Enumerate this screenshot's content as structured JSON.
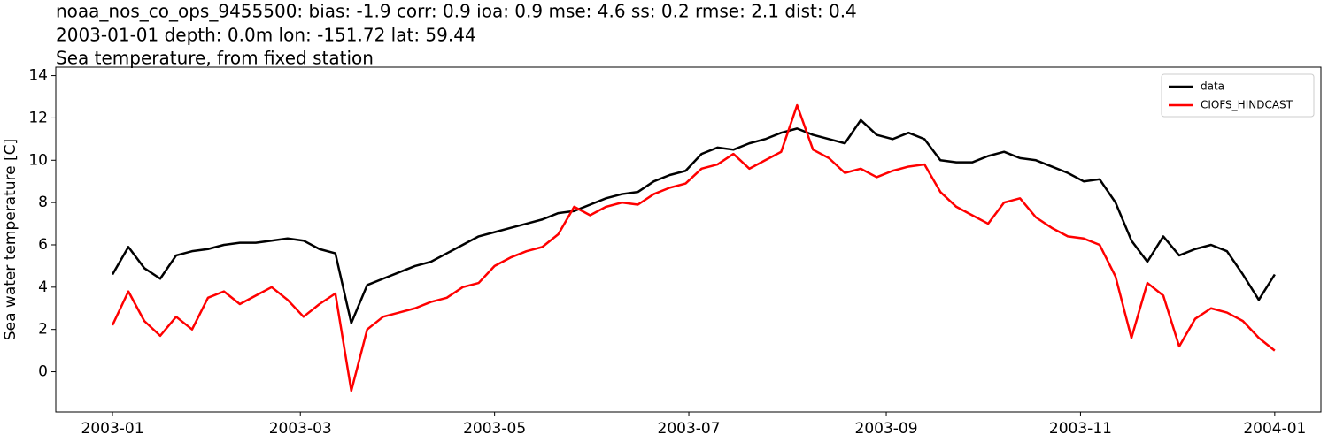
{
  "chart_data": {
    "type": "line",
    "title": [
      "noaa_nos_co_ops_9455500: bias: -1.9  corr: 0.9  ioa: 0.9  mse: 4.6  ss: 0.2  rmse: 2.1  dist: 0.4",
      "2003-01-01 depth: 0.0m lon: -151.72 lat: 59.44",
      "Sea temperature, from fixed station"
    ],
    "ylabel": "Sea water temperature [C]",
    "xlim": [
      "2003-01",
      "2004-01"
    ],
    "xticks": [
      "2003-01",
      "2003-03",
      "2003-05",
      "2003-07",
      "2003-09",
      "2003-11",
      "2004-01"
    ],
    "ylim": [
      -1.9,
      14.4
    ],
    "yticks": [
      0,
      2,
      4,
      6,
      8,
      10,
      12,
      14
    ],
    "grid": false,
    "legend": "upper right",
    "series": [
      {
        "name": "data",
        "color": "#000000",
        "values": [
          4.6,
          5.9,
          4.9,
          4.4,
          5.5,
          5.7,
          5.8,
          6.0,
          6.1,
          6.1,
          6.2,
          6.3,
          6.2,
          5.8,
          5.6,
          2.3,
          4.1,
          4.4,
          4.7,
          5.0,
          5.2,
          5.6,
          6.0,
          6.4,
          6.6,
          6.8,
          7.0,
          7.2,
          7.5,
          7.6,
          7.9,
          8.2,
          8.4,
          8.5,
          9.0,
          9.3,
          9.5,
          10.3,
          10.6,
          10.5,
          10.8,
          11.0,
          11.3,
          11.5,
          11.2,
          11.0,
          10.8,
          11.9,
          11.2,
          11.0,
          11.3,
          11.0,
          10.0,
          9.9,
          9.9,
          10.2,
          10.4,
          10.1,
          10.0,
          9.7,
          9.4,
          9.0,
          9.1,
          8.0,
          6.2,
          5.2,
          6.4,
          5.5,
          5.8,
          6.0,
          5.7,
          4.6,
          3.4,
          4.6
        ]
      },
      {
        "name": "CIOFS_HINDCAST",
        "color": "#ff0000",
        "values": [
          2.2,
          3.8,
          2.4,
          1.7,
          2.6,
          2.0,
          3.5,
          3.8,
          3.2,
          3.6,
          4.0,
          3.4,
          2.6,
          3.2,
          3.7,
          -0.9,
          2.0,
          2.6,
          2.8,
          3.0,
          3.3,
          3.5,
          4.0,
          4.2,
          5.0,
          5.4,
          5.7,
          5.9,
          6.5,
          7.8,
          7.4,
          7.8,
          8.0,
          7.9,
          8.4,
          8.7,
          8.9,
          9.6,
          9.8,
          10.3,
          9.6,
          10.0,
          10.4,
          12.6,
          10.5,
          10.1,
          9.4,
          9.6,
          9.2,
          9.5,
          9.7,
          9.8,
          8.5,
          7.8,
          7.4,
          7.0,
          8.0,
          8.2,
          7.3,
          6.8,
          6.4,
          6.3,
          6.0,
          4.5,
          1.6,
          4.2,
          3.6,
          1.2,
          2.5,
          3.0,
          2.8,
          2.4,
          1.6,
          1.0
        ]
      }
    ]
  }
}
